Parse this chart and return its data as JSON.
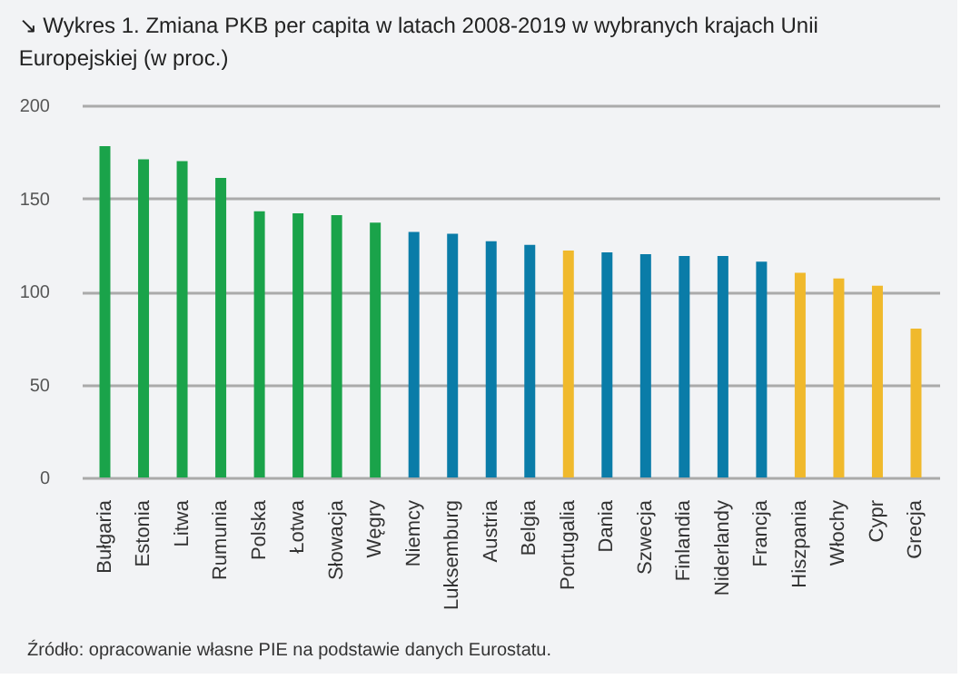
{
  "chart_data": {
    "type": "bar",
    "title": "↘ Wykres 1. Zmiana PKB per capita w latach 2008-2019 w wybranych krajach Unii Europejskiej (w proc.)",
    "categories": [
      "Bułgaria",
      "Estonia",
      "Litwa",
      "Rumunia",
      "Polska",
      "Łotwa",
      "Słowacja",
      "Węgry",
      "Niemcy",
      "Luksemburg",
      "Austria",
      "Belgia",
      "Portugalia",
      "Dania",
      "Szwecja",
      "Finlandia",
      "Niderlandy",
      "Francja",
      "Hiszpania",
      "Włochy",
      "Cypr",
      "Grecja"
    ],
    "values": [
      178,
      171,
      170,
      161,
      143,
      142,
      141,
      137,
      132,
      131,
      127,
      125,
      122,
      121,
      120,
      119,
      119,
      116,
      110,
      107,
      103,
      80
    ],
    "colors": [
      "#1aa34a",
      "#1aa34a",
      "#1aa34a",
      "#1aa34a",
      "#1aa34a",
      "#1aa34a",
      "#1aa34a",
      "#1aa34a",
      "#0a7ca8",
      "#0a7ca8",
      "#0a7ca8",
      "#0a7ca8",
      "#f0b92c",
      "#0a7ca8",
      "#0a7ca8",
      "#0a7ca8",
      "#0a7ca8",
      "#0a7ca8",
      "#f0b92c",
      "#f0b92c",
      "#f0b92c",
      "#f0b92c"
    ],
    "ylim": [
      0,
      200
    ],
    "yticks": [
      0,
      50,
      100,
      150,
      200
    ],
    "grid": "y",
    "annotations": [
      "Źródło: opracowanie własne PIE na podstawie danych Eurostatu."
    ]
  }
}
